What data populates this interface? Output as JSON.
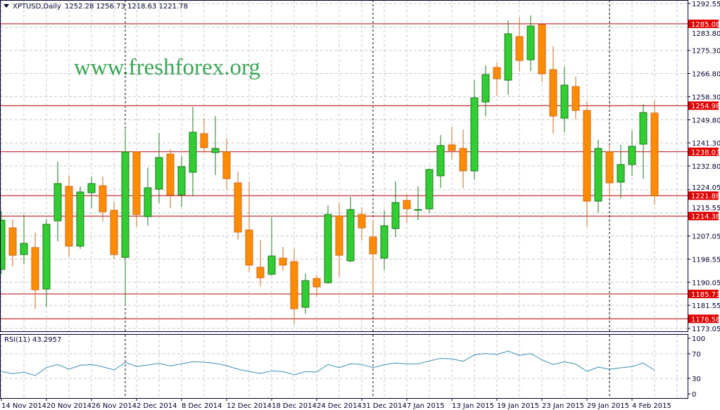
{
  "header": {
    "symbol": "XPTUSD,Daily",
    "ohlc": "1252.28 1256.73 1218.63 1221.78"
  },
  "watermark": "www.freshforex.org",
  "rsi_label": "RSI(11) 43.2957",
  "colors": {
    "bull": "#32cd32",
    "bull_edge": "#1f7a1f",
    "bear": "#ff8c00",
    "bear_edge": "#d2691e",
    "level_line": "#c00000",
    "level_label": "#e00000",
    "rsi_line": "#3b8fb5",
    "watermark": "#3aa655",
    "grid": "#c8c8c8",
    "axis": "#000033"
  },
  "chart_data": [
    {
      "type": "candlestick",
      "title": "XPTUSD,Daily",
      "ylim": [
        1173.05,
        1292.55
      ],
      "y_ticks": [
        "1292.55",
        "1283.80",
        "1275.30",
        "1266.80",
        "1258.30",
        "1249.80",
        "1241.30",
        "1232.80",
        "1224.05",
        "1215.55",
        "1207.05",
        "1198.55",
        "1190.05",
        "1181.55",
        "1173.05"
      ],
      "x_tick_labels": [
        "14 Nov 2014",
        "20 Nov 2014",
        "26 Nov 2014",
        "2 Dec 2014",
        "8 Dec 2014",
        "12 Dec 2014",
        "18 Dec 2014",
        "24 Dec 2014",
        "31 Dec 2014",
        "7 Jan 2015",
        "13 Jan 2015",
        "19 Jan 2015",
        "23 Jan 2015",
        "29 Jan 2015",
        "4 Feb 2015"
      ],
      "x_tick_every_bars": 4,
      "month_separator_bars": [
        11,
        33,
        54
      ],
      "grid": true,
      "levels": [
        "1285.08",
        "1254.98",
        "1238.03",
        "1221.88",
        "1214.38",
        "1185.73",
        "1176.58"
      ],
      "ohlc": [
        [
          1194.77,
          1216.24,
          1192.96,
          1212.88
        ],
        [
          1210.03,
          1213.14,
          1195.81,
          1199.95
        ],
        [
          1200.21,
          1214.95,
          1196.58,
          1204.34
        ],
        [
          1202.79,
          1208.22,
          1180.29,
          1187.27
        ],
        [
          1187.53,
          1213.14,
          1181.06,
          1211.33
        ],
        [
          1212.62,
          1234.35,
          1205.12,
          1226.33
        ],
        [
          1225.3,
          1229.17,
          1199.43,
          1203.31
        ],
        [
          1203.31,
          1225.3,
          1202.27,
          1223.23
        ],
        [
          1222.97,
          1228.92,
          1217.28,
          1226.33
        ],
        [
          1225.55,
          1228.92,
          1212.36,
          1215.98
        ],
        [
          1216.5,
          1219.86,
          1198.65,
          1200.21
        ],
        [
          1199.17,
          1246.25,
          1181.32,
          1237.97
        ],
        [
          1237.97,
          1237.97,
          1210.55,
          1214.95
        ],
        [
          1214.17,
          1232.28,
          1210.81,
          1224.78
        ],
        [
          1224.26,
          1244.95,
          1219.09,
          1235.9
        ],
        [
          1237.19,
          1239.0,
          1217.28,
          1222.19
        ],
        [
          1222.19,
          1236.42,
          1217.79,
          1232.54
        ],
        [
          1230.47,
          1254.52,
          1221.67,
          1245.21
        ],
        [
          1244.69,
          1250.39,
          1237.71,
          1239.52
        ],
        [
          1237.71,
          1251.16,
          1229.43,
          1239.26
        ],
        [
          1237.97,
          1243.14,
          1224.0,
          1228.14
        ],
        [
          1226.59,
          1230.73,
          1205.64,
          1208.48
        ],
        [
          1209.26,
          1227.11,
          1193.74,
          1196.33
        ],
        [
          1195.55,
          1205.64,
          1188.57,
          1191.67
        ],
        [
          1192.96,
          1213.91,
          1192.45,
          1199.69
        ],
        [
          1198.91,
          1203.05,
          1194.26,
          1196.33
        ],
        [
          1197.62,
          1202.27,
          1174.6,
          1180.29
        ],
        [
          1180.81,
          1193.22,
          1178.48,
          1190.63
        ],
        [
          1191.41,
          1192.7,
          1184.69,
          1188.31
        ],
        [
          1189.86,
          1218.31,
          1189.34,
          1214.95
        ],
        [
          1214.43,
          1219.09,
          1192.19,
          1199.95
        ],
        [
          1197.88,
          1221.42,
          1197.36,
          1216.76
        ],
        [
          1214.95,
          1217.54,
          1205.38,
          1210.03
        ],
        [
          1206.67,
          1213.14,
          1185.46,
          1200.46
        ],
        [
          1198.91,
          1216.5,
          1194.51,
          1210.81
        ],
        [
          1209.78,
          1227.11,
          1206.67,
          1219.35
        ],
        [
          1220.12,
          1222.45,
          1211.84,
          1217.02
        ],
        [
          1216.76,
          1225.3,
          1212.88,
          1216.76
        ],
        [
          1217.02,
          1231.76,
          1215.47,
          1231.5
        ],
        [
          1229.17,
          1244.18,
          1224.78,
          1240.3
        ],
        [
          1240.56,
          1247.28,
          1235.12,
          1238.49
        ],
        [
          1239.26,
          1246.25,
          1224.52,
          1230.99
        ],
        [
          1230.99,
          1264.35,
          1227.88,
          1257.89
        ],
        [
          1256.33,
          1269.78,
          1251.16,
          1266.42
        ],
        [
          1269.01,
          1270.82,
          1258.66,
          1264.87
        ],
        [
          1264.35,
          1286.34,
          1258.92,
          1281.42
        ],
        [
          1280.39,
          1287.37,
          1267.72,
          1271.6
        ],
        [
          1271.85,
          1288.15,
          1267.72,
          1284.27
        ],
        [
          1284.79,
          1284.79,
          1263.58,
          1266.68
        ],
        [
          1268.23,
          1276.77,
          1244.69,
          1251.16
        ],
        [
          1250.39,
          1269.27,
          1245.21,
          1262.54
        ],
        [
          1262.02,
          1265.65,
          1249.87,
          1253.23
        ],
        [
          1253.23,
          1256.59,
          1210.55,
          1219.86
        ],
        [
          1219.86,
          1242.37,
          1215.72,
          1239.26
        ],
        [
          1237.97,
          1240.56,
          1221.42,
          1226.59
        ],
        [
          1226.85,
          1240.56,
          1220.9,
          1233.31
        ],
        [
          1233.31,
          1245.73,
          1229.17,
          1240.04
        ],
        [
          1240.81,
          1255.56,
          1228.14,
          1252.45
        ],
        [
          1252.28,
          1256.73,
          1218.63,
          1221.78
        ]
      ]
    },
    {
      "type": "line",
      "title": "RSI(11) 43.2957",
      "ylim": [
        0,
        100
      ],
      "y_ticks": [
        "100",
        "70",
        "30",
        "0"
      ],
      "values": [
        41,
        37.6,
        40,
        34.6,
        47.5,
        52.5,
        44.9,
        51.3,
        52.5,
        48.7,
        43.7,
        55.9,
        49.4,
        51.7,
        54.3,
        50.2,
        53.6,
        57,
        56.3,
        54.3,
        50.6,
        44.9,
        41,
        38,
        42.2,
        41,
        35.7,
        41,
        40.3,
        52.5,
        47.5,
        53.6,
        52.5,
        47.5,
        52.1,
        54.8,
        53.6,
        53.6,
        58.2,
        62.4,
        61.6,
        57.8,
        68.1,
        70.4,
        68.9,
        74.2,
        67.3,
        70.4,
        60.1,
        52.5,
        57,
        53.2,
        41.4,
        48.3,
        44.9,
        47.1,
        49.1,
        54.8,
        43.3
      ]
    }
  ]
}
